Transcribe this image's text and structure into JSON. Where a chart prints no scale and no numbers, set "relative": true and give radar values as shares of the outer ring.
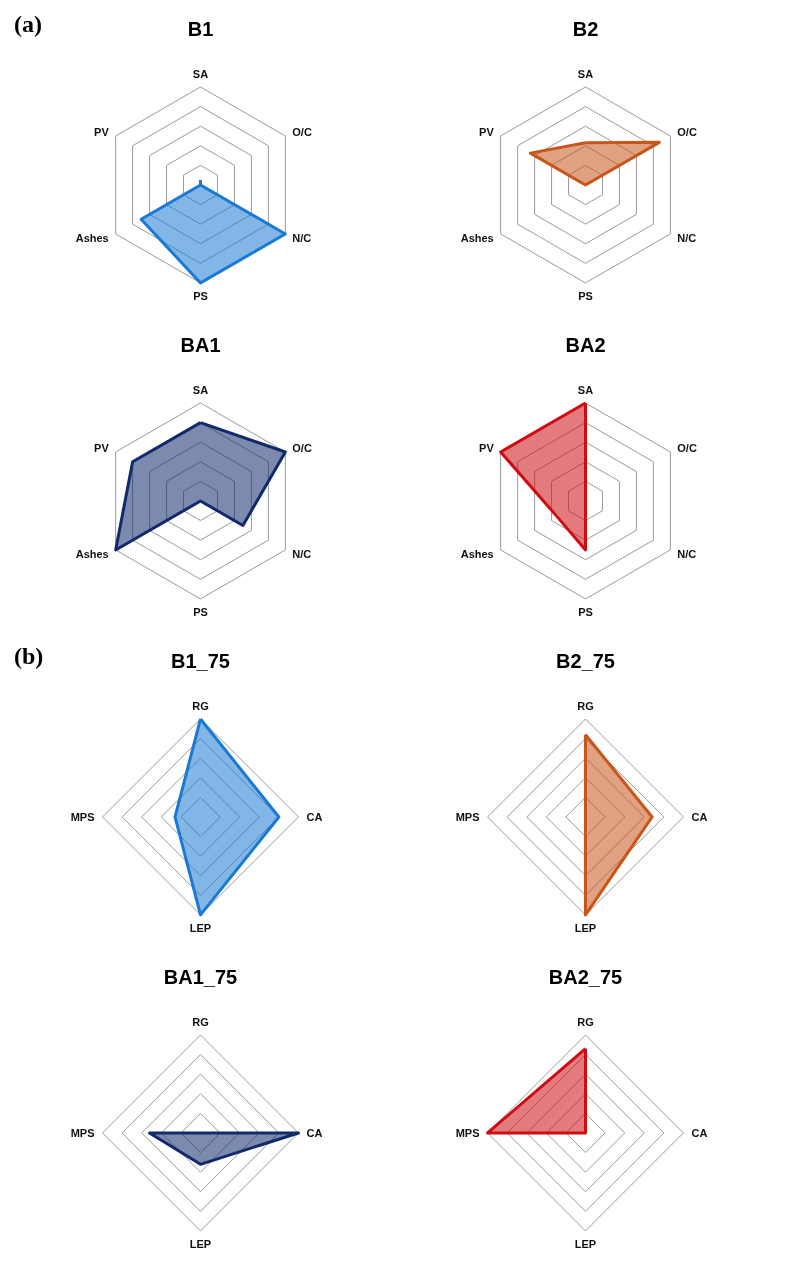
{
  "chart_data": [
    {
      "type": "radar",
      "title": "B1",
      "relative": true,
      "annotations": [
        "(a)"
      ],
      "categories": [
        "SA",
        "O/C",
        "N/C",
        "PS",
        "Ashes",
        "PV"
      ],
      "series": [
        {
          "color": "#1a7ad4",
          "values": [
            0.05,
            0,
            1,
            1,
            0.7,
            0
          ]
        }
      ]
    },
    {
      "type": "radar",
      "title": "B2",
      "relative": true,
      "categories": [
        "SA",
        "O/C",
        "N/C",
        "PS",
        "Ashes",
        "PV"
      ],
      "series": [
        {
          "color": "#c8561a",
          "values": [
            0.43,
            0.87,
            0,
            0,
            0,
            0.65
          ]
        }
      ]
    },
    {
      "type": "radar",
      "title": "BA1",
      "relative": true,
      "categories": [
        "SA",
        "O/C",
        "N/C",
        "PS",
        "Ashes",
        "PV"
      ],
      "series": [
        {
          "color": "#102a6b",
          "values": [
            0.8,
            1,
            0.5,
            0,
            1,
            0.8
          ]
        }
      ]
    },
    {
      "type": "radar",
      "title": "BA2",
      "relative": true,
      "categories": [
        "SA",
        "O/C",
        "N/C",
        "PS",
        "Ashes",
        "PV"
      ],
      "series": [
        {
          "color": "#cc0e14",
          "values": [
            1,
            0,
            0,
            0.5,
            0.33,
            1
          ]
        }
      ]
    },
    {
      "type": "radar",
      "title": "B1_75",
      "relative": true,
      "annotations": [
        "(b)"
      ],
      "categories": [
        "RG",
        "CA",
        "LEP",
        "MPS"
      ],
      "series": [
        {
          "color": "#1a7ad4",
          "values": [
            1,
            0.8,
            1,
            0.26
          ]
        }
      ]
    },
    {
      "type": "radar",
      "title": "B2_75",
      "relative": true,
      "categories": [
        "RG",
        "CA",
        "LEP",
        "MPS"
      ],
      "series": [
        {
          "color": "#c8561a",
          "values": [
            0.84,
            0.68,
            1,
            0
          ]
        }
      ]
    },
    {
      "type": "radar",
      "title": "BA1_75",
      "relative": true,
      "categories": [
        "RG",
        "CA",
        "LEP",
        "MPS"
      ],
      "series": [
        {
          "color": "#102a6b",
          "values": [
            0,
            1,
            0.32,
            0.52
          ]
        }
      ]
    },
    {
      "type": "radar",
      "title": "BA2_75",
      "relative": true,
      "categories": [
        "RG",
        "CA",
        "LEP",
        "MPS"
      ],
      "series": [
        {
          "color": "#cc0e14",
          "values": [
            0.86,
            0,
            0,
            1
          ]
        }
      ]
    }
  ]
}
